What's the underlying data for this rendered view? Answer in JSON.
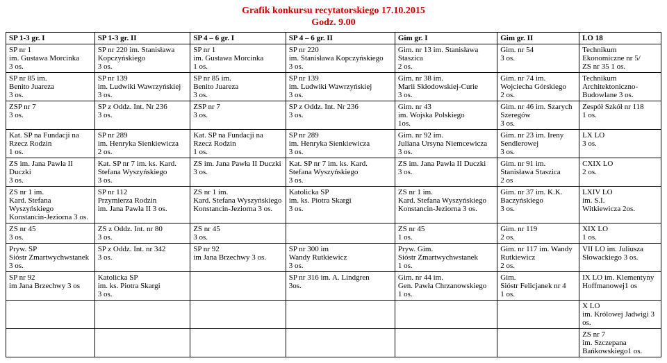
{
  "title": {
    "line1": "Grafik konkursu recytatorskiego 17.10.2015",
    "line2": "Godz. 9.00"
  },
  "headers": [
    "SP 1-3 gr. I",
    "SP 1-3 gr. II",
    "SP 4 – 6 gr. I",
    "SP 4 – 6 gr. II",
    "Gim gr. I",
    "Gim gr. II",
    "LO 18"
  ],
  "rows": [
    [
      "SP nr 1\nim. Gustawa Morcinka\n3 os.",
      "SP nr 220 im. Stanisława Kopczyńskiego\n3 os.",
      "SP nr 1\nim. Gustawa Morcinka\n1 os.",
      "SP nr 220\nim. Stanisława Kopczyńskiego\n3 os.",
      "Gim. nr 13 im. Stanisława Staszica\n2 os.",
      "Gim. nr 54\n3 os.",
      "Technikum Ekonomiczne nr 5/\nZS nr 35 1 os."
    ],
    [
      "SP nr 85 im.\nBenito Juareza\n3 os.",
      "SP nr 139\nim. Ludwiki Wawrzyńskiej\n3 os.",
      "SP nr 85 im.\nBenito Juareza\n3 os.",
      "SP nr 139\nim. Ludwiki Wawrzyńskiej\n3 os.",
      "Gim. nr 38 im.\nMarii Skłodowskiej-Curie\n3 os.",
      "Gim. nr 74 im. Wojciecha Górskiego\n2 os.",
      "Technikum Architektoniczno-Budowlane 3 os."
    ],
    [
      "ZSP nr 7\n3 os.",
      "SP z Oddz. Int. Nr 236\n3 os.",
      "ZSP nr 7\n3 os.",
      "SP z Oddz. Int. Nr 236\n3 os.",
      "Gim. nr 43\nim. Wojska Polskiego\n1os.",
      "Gim. nr 46 im. Szarych Szeregów\n3 os.",
      "Zespół Szkół nr 118\n1 os."
    ],
    [
      "Kat. SP na Fundacji na Rzecz Rodzin\n1 os.",
      "SP nr 289\nim. Henryka Sienkiewicza\n2 os.",
      "Kat. SP na Fundacji na Rzecz Rodzin\n1 os.",
      "SP nr 289\nim. Henryka Sienkiewicza\n3 os.",
      "Gim. nr 92 im.\nJuliana Ursyna Niemcewicza\n3 os.",
      "Gim. nr 23 im. Ireny Sendlerowej\n3 os.",
      "LX  LO\n3 os."
    ],
    [
      "ZS im. Jana Pawła II Duczki\n3 os.",
      "Kat. SP nr 7 im. ks. Kard. Stefana Wyszyńskiego\n3 os.",
      "ZS im. Jana Pawła II Duczki\n3 os.",
      "Kat. SP nr 7 im. ks. Kard. Stefana Wyszyńskiego\n3 os.",
      "ZS im. Jana Pawła II Duczki\n3 os.",
      "Gim. nr 91 im. Stanisława Staszica\n2 os",
      "CXIX LO\n2 os."
    ],
    [
      "ZS nr 1 im.\nKard. Stefana Wyszyńskiego Konstancin-Jeziorna 3 os.",
      "SP nr 112\nPrzymierza Rodzin\nim. Jana Pawła II 3 os.",
      "ZS nr 1 im.\nKard. Stefana Wyszyńskiego Konstancin-Jeziorna 3 os.",
      "Katolicka SP\nim. ks. Piotra Skargi\n3 os.",
      "ZS nr 1 im.\nKard. Stefana Wyszyńskiego Konstancin-Jeziorna 3 os.",
      "Gim. nr 37 im. K.K. Baczyńskiego\n3 os.",
      "LXIV LO\nim. S.I.\nWitkiewicza 2os."
    ],
    [
      "ZS nr 45\n3 os.",
      "ZS z Oddz. Int. nr 80\n3 os.",
      "ZS nr 45\n3 os.",
      "",
      "ZS nr 45\n1 os.",
      "Gim. nr 119\n2 os.",
      "XIX LO\n1 os."
    ],
    [
      "Pryw. SP\nSióstr Zmartwychwstanek\n3 os.",
      "SP z Oddz. Int. nr 342\n3 os.",
      "SP nr 92\nim Jana Brzechwy 3 os.",
      "SP nr 300 im\nWandy Rutkiewicz\n3 os.",
      "Pryw. Gim.\nSióstr Zmartwychwstanek\n1 os.",
      "Gim. nr 117 im. Wandy Rutkiewicz\n2 os.",
      "VII LO im. Juliusza Słowackiego 3 os."
    ],
    [
      "SP nr 92\nim Jana Brzechwy 3 os",
      "Katolicka SP\nim. ks. Piotra Skargi\n3 os.",
      "",
      "SP nr 316 im. A. Lindgren\n3os.",
      "Gim. nr 44 im.\nGen. Pawła Chrzanowskiego\n1 os.",
      "Gim.\nSióstr Felicjanek nr 4\n1 os.",
      "IX   LO   im. Klementyny Hoffmanowej1 os"
    ],
    [
      "",
      "",
      "",
      "",
      "",
      "",
      "X LO\nim. Królowej Jadwigi 3 os."
    ],
    [
      "",
      "",
      "",
      "",
      "",
      "",
      "ZS nr 7\nim. Szczepana Bańkowskiego1 os."
    ]
  ]
}
